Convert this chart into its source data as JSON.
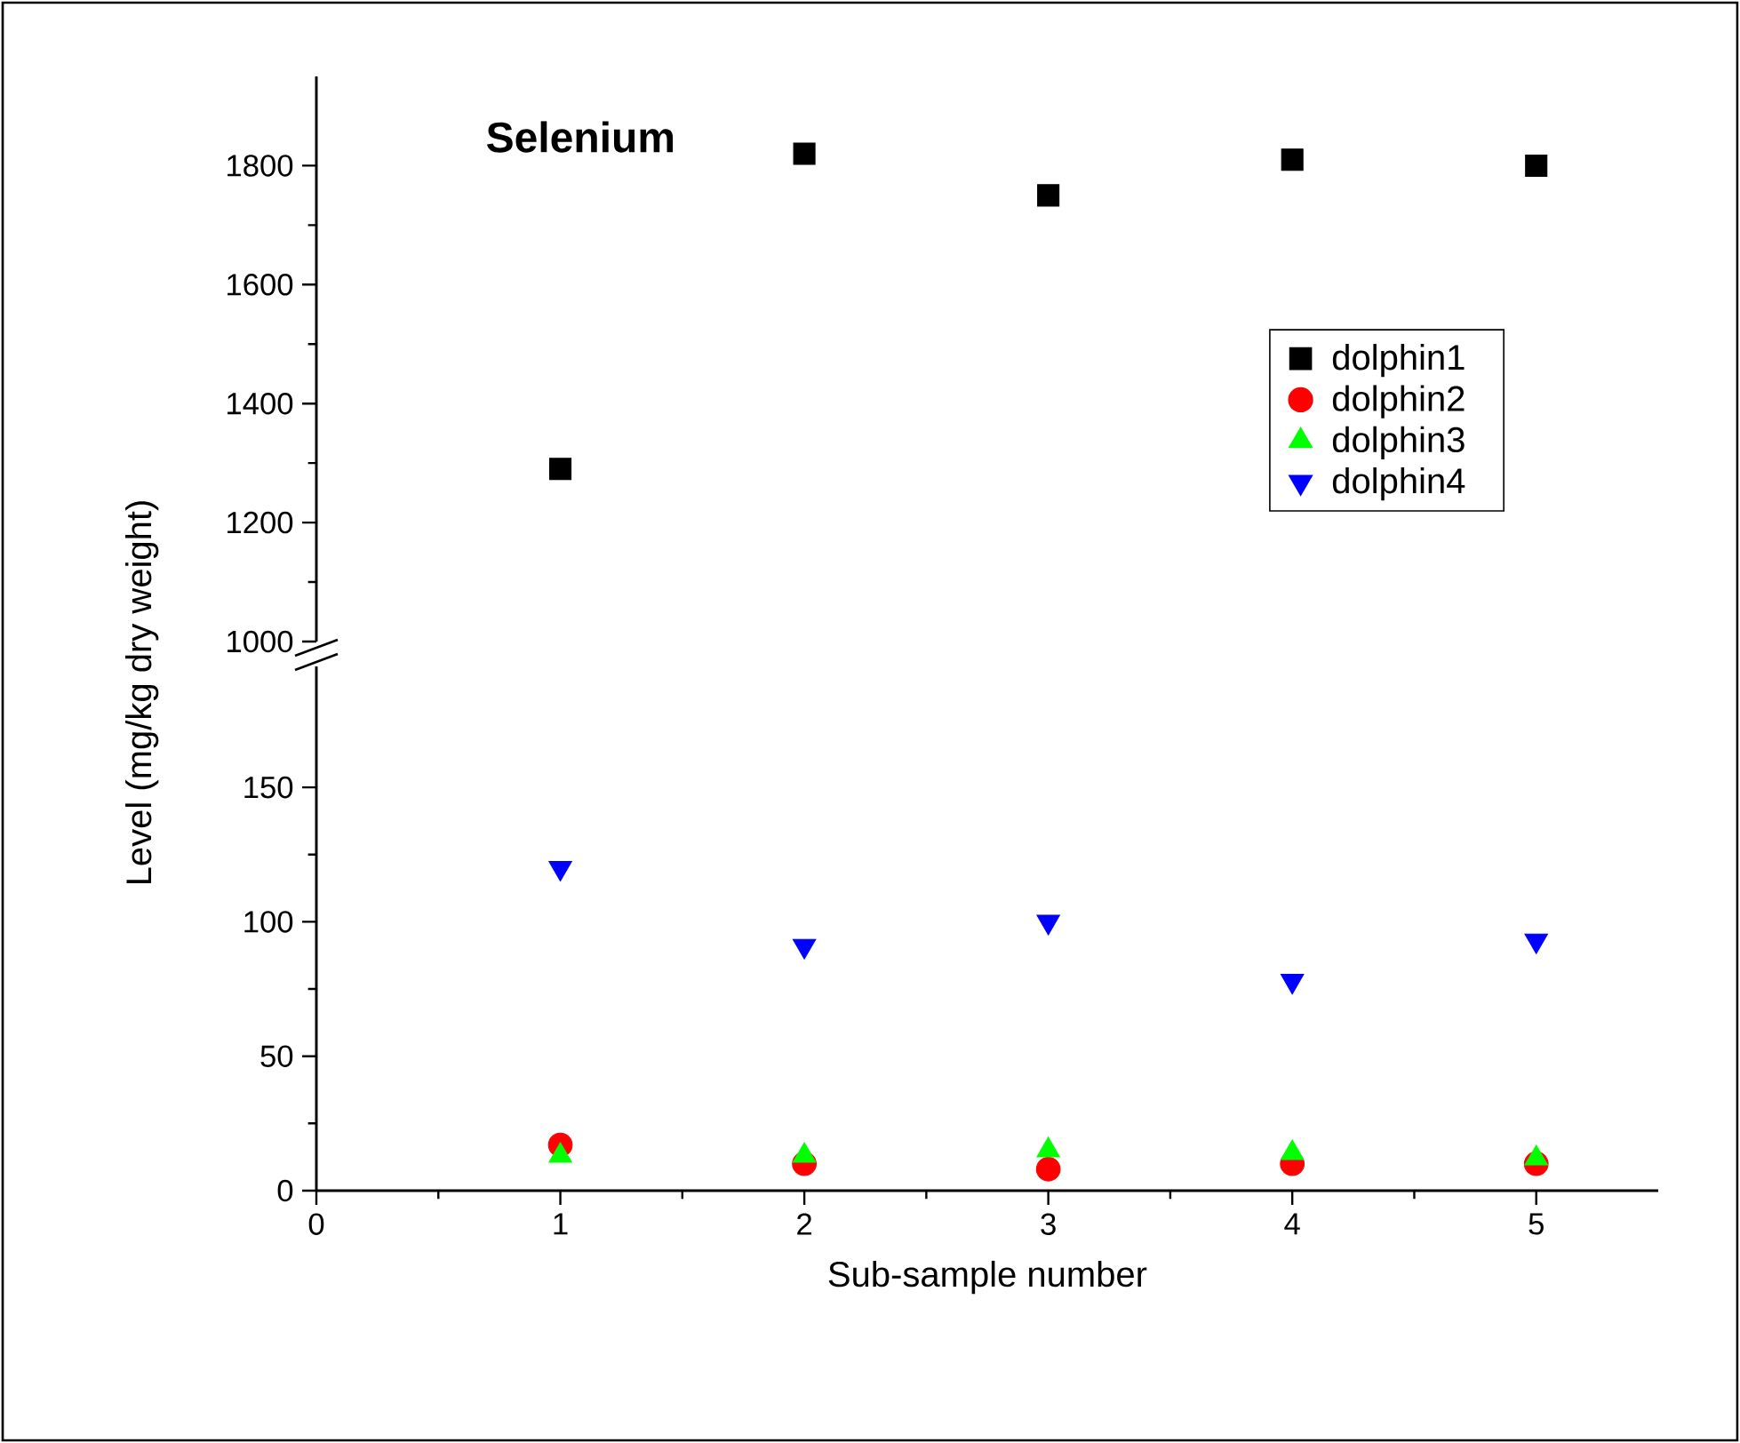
{
  "chart_data": [
    {
      "type": "scatter",
      "title": "Selenium",
      "x": [
        1,
        2,
        3,
        4,
        5
      ],
      "ylim": [
        1000,
        1950
      ],
      "yticks": [
        1000,
        1200,
        1400,
        1600,
        1800
      ],
      "tick_labels": "y",
      "legend": "right",
      "series": [
        {
          "name": "dolphin1",
          "color": "#000000",
          "marker": "square",
          "values": [
            1290,
            1820,
            1750,
            1810,
            1800
          ]
        },
        {
          "name": "dolphin2",
          "color": "#ff0000",
          "marker": "circle",
          "values": [
            null,
            null,
            null,
            null,
            null
          ]
        },
        {
          "name": "dolphin3",
          "color": "#00ff00",
          "marker": "triangle",
          "values": [
            null,
            null,
            null,
            null,
            null
          ]
        },
        {
          "name": "dolphin4",
          "color": "#0000ff",
          "marker": "triangle-down",
          "values": [
            null,
            null,
            null,
            null,
            null
          ]
        }
      ]
    },
    {
      "type": "scatter",
      "xlabel": "Sub-sample number",
      "ylabel": "Level (mg/kg dry weight)",
      "x": [
        1,
        2,
        3,
        4,
        5
      ],
      "xlim": [
        0,
        5.5
      ],
      "xticks": [
        0,
        1,
        2,
        3,
        4,
        5
      ],
      "ylim": [
        0,
        195
      ],
      "yticks": [
        0,
        50,
        100,
        150
      ],
      "series": [
        {
          "color": "#ff0000",
          "marker": "circle",
          "values": [
            17,
            10,
            8,
            10,
            10
          ]
        },
        {
          "color": "#00ff00",
          "marker": "triangle",
          "values": [
            13,
            13,
            15,
            14,
            12
          ]
        },
        {
          "color": "#0000ff",
          "marker": "triangle-down",
          "values": [
            120,
            91,
            100,
            78,
            93
          ]
        }
      ]
    }
  ]
}
